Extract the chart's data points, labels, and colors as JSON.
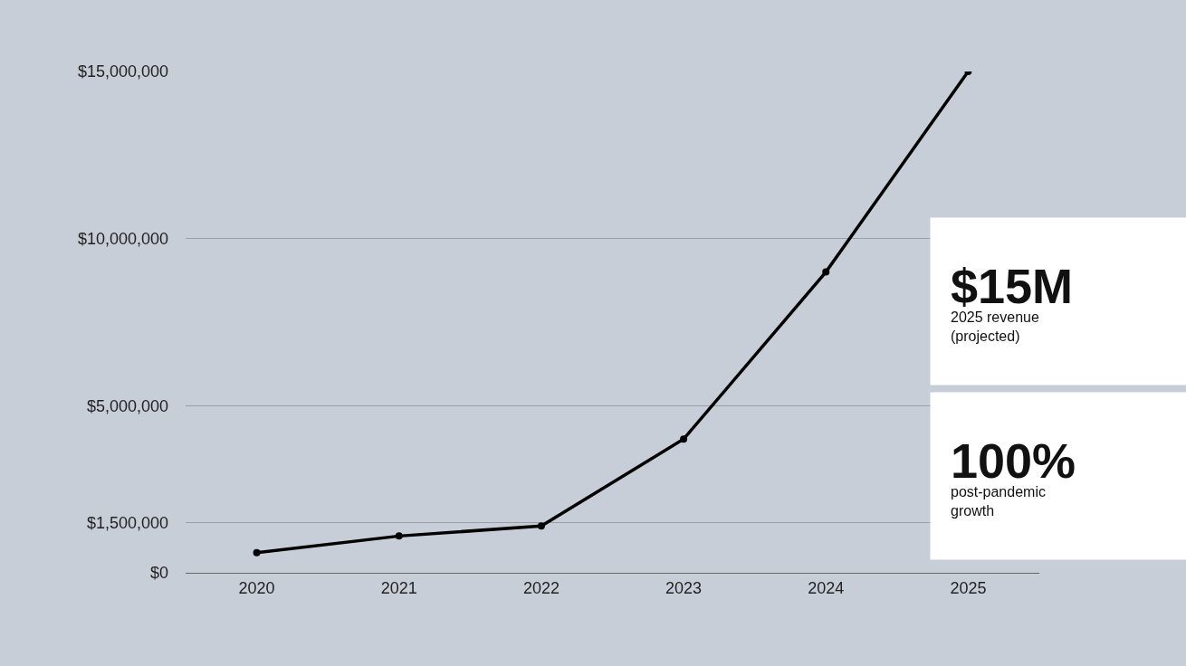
{
  "chart_data": {
    "type": "line",
    "categories": [
      "2020",
      "2021",
      "2022",
      "2023",
      "2024",
      "2025"
    ],
    "series": [
      {
        "color": "#000000",
        "values": [
          600000,
          1100000,
          1400000,
          4000000,
          9000000,
          15000000
        ]
      }
    ],
    "ylim": [
      0,
      15000000
    ],
    "yticks": [
      {
        "value": 0,
        "label": "$0"
      },
      {
        "value": 1500000,
        "label": "$1,500,000"
      },
      {
        "value": 5000000,
        "label": "$5,000,000"
      },
      {
        "value": 10000000,
        "label": "$10,000,000"
      },
      {
        "value": 15000000,
        "label": "$15,000,000"
      }
    ],
    "grid": "y",
    "marker": "circle",
    "line_style": "solid",
    "annotations": [
      "$15M",
      "2025 revenue\n(projected)",
      "100%",
      "post-pandemic\ngrowth"
    ]
  }
}
